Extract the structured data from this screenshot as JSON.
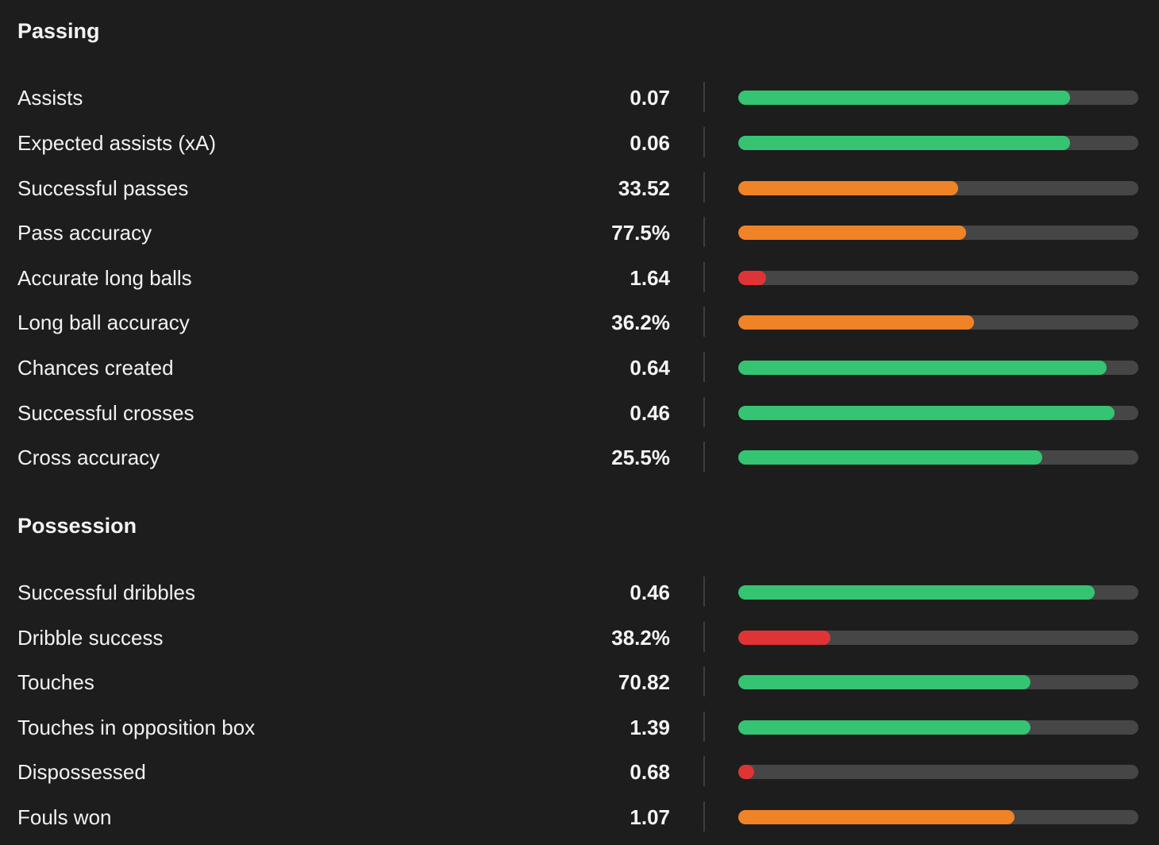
{
  "colors": {
    "good": "#34c472",
    "average": "#f08326",
    "poor": "#e03434",
    "track": "#464646",
    "background": "#1d1d1d"
  },
  "sections": [
    {
      "title": "Passing",
      "rows": [
        {
          "label": "Assists",
          "value": "0.07",
          "percentile": 83,
          "rating": "good"
        },
        {
          "label": "Expected assists (xA)",
          "value": "0.06",
          "percentile": 83,
          "rating": "good"
        },
        {
          "label": "Successful passes",
          "value": "33.52",
          "percentile": 55,
          "rating": "average"
        },
        {
          "label": "Pass accuracy",
          "value": "77.5%",
          "percentile": 57,
          "rating": "average"
        },
        {
          "label": "Accurate long balls",
          "value": "1.64",
          "percentile": 7,
          "rating": "poor"
        },
        {
          "label": "Long ball accuracy",
          "value": "36.2%",
          "percentile": 59,
          "rating": "average"
        },
        {
          "label": "Chances created",
          "value": "0.64",
          "percentile": 92,
          "rating": "good"
        },
        {
          "label": "Successful crosses",
          "value": "0.46",
          "percentile": 94,
          "rating": "good"
        },
        {
          "label": "Cross accuracy",
          "value": "25.5%",
          "percentile": 76,
          "rating": "good"
        }
      ]
    },
    {
      "title": "Possession",
      "rows": [
        {
          "label": "Successful dribbles",
          "value": "0.46",
          "percentile": 89,
          "rating": "good"
        },
        {
          "label": "Dribble success",
          "value": "38.2%",
          "percentile": 23,
          "rating": "poor"
        },
        {
          "label": "Touches",
          "value": "70.82",
          "percentile": 73,
          "rating": "good"
        },
        {
          "label": "Touches in opposition box",
          "value": "1.39",
          "percentile": 73,
          "rating": "good"
        },
        {
          "label": "Dispossessed",
          "value": "0.68",
          "percentile": 4,
          "rating": "poor"
        },
        {
          "label": "Fouls won",
          "value": "1.07",
          "percentile": 69,
          "rating": "average"
        }
      ]
    }
  ]
}
